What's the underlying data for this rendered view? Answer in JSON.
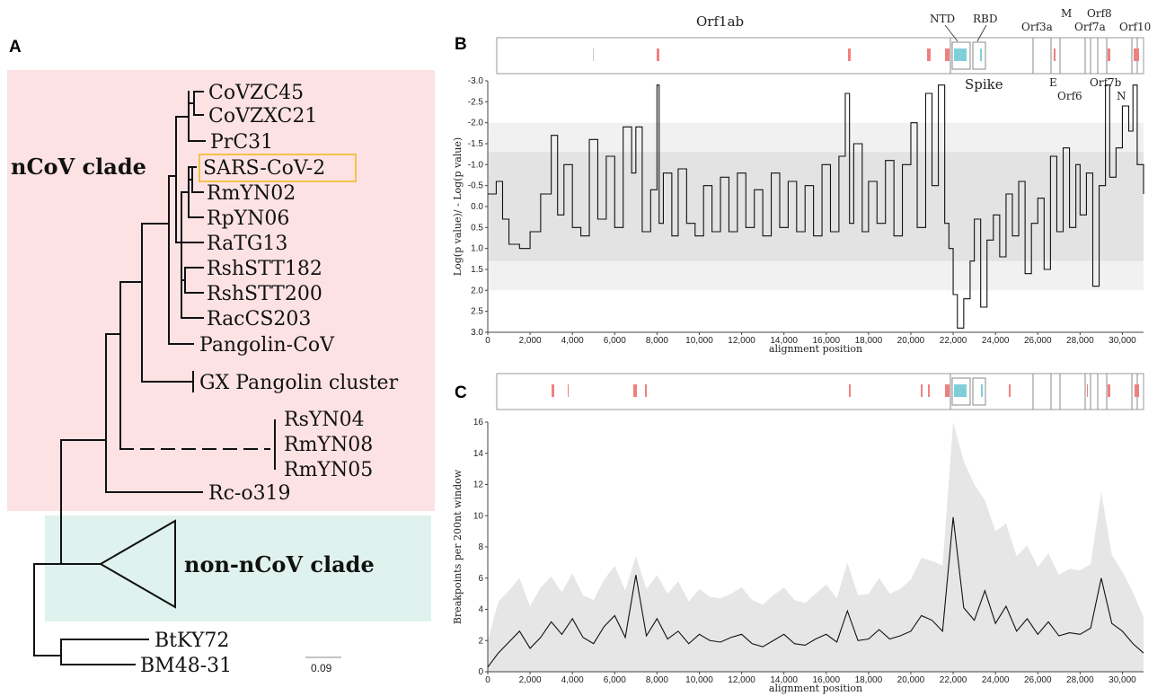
{
  "panels": {
    "a": "A",
    "b": "B",
    "c": "C"
  },
  "colors": {
    "ncov_bg": "#fde2e4",
    "nonncov_bg": "#dff2ee",
    "highlight_box": "#f4c24a",
    "recomb_red": "#f08080",
    "recomb_blue": "#7ecfd8",
    "band_dark": "#e3e3e3",
    "band_light": "#f1f1f1",
    "ci_fill": "#e6e6e6",
    "line": "#111111"
  },
  "tree": {
    "clade_ncov": "nCoV clade",
    "clade_non_ncov": "non-nCoV clade",
    "highlighted_leaf": "SARS-CoV-2",
    "leaves": [
      "CoVZC45",
      "CoVZXC21",
      "PrC31",
      "SARS-CoV-2",
      "RmYN02",
      "RpYN06",
      "RaTG13",
      "RshSTT182",
      "RshSTT200",
      "RacCS203",
      "Pangolin-CoV",
      "GX Pangolin cluster",
      "RsYN04",
      "RmYN08",
      "RmYN05",
      "Rc-o319",
      "BtKY72",
      "BM48-31"
    ],
    "scale_label": "0.09"
  },
  "genome_labels": {
    "orf1ab": "Orf1ab",
    "spike": "Spike",
    "ntd": "NTD",
    "rbd": "RBD",
    "orf3a": "Orf3a",
    "m": "M",
    "e": "E",
    "orf6": "Orf6",
    "orf7a": "Orf7a",
    "orf7b": "Orf7b",
    "orf8": "Orf8",
    "n": "N",
    "orf10": "Orf10"
  },
  "chart_data": [
    {
      "type": "line",
      "panel": "B",
      "xlabel": "alignment position",
      "ylabel": "Log(p value)/ - Log(p value)",
      "xlim": [
        0,
        31000
      ],
      "ylim": [
        -3.0,
        3.0
      ],
      "x_ticks": [
        "0",
        "2,000",
        "4,000",
        "6,000",
        "8,000",
        "10,000",
        "12,000",
        "14,000",
        "16,000",
        "18,000",
        "20,000",
        "22,000",
        "24,000",
        "26,000",
        "28,000",
        "30,000"
      ],
      "y_ticks": [
        "-3.0",
        "-2.5",
        "-2.0",
        "-1.5",
        "-1.0",
        "-0.5",
        "0.0",
        "0.5",
        "1.0",
        "1.5",
        "2.0",
        "2.5",
        "3.0"
      ],
      "bands": [
        {
          "from": -2.0,
          "to": 2.0,
          "shade": "light"
        },
        {
          "from": -1.3,
          "to": 1.3,
          "shade": "dark"
        }
      ],
      "x": [
        0,
        400,
        700,
        1000,
        1500,
        2000,
        2500,
        3000,
        3300,
        3600,
        4000,
        4400,
        4800,
        5200,
        5600,
        6000,
        6400,
        6800,
        7000,
        7300,
        7700,
        8000,
        8100,
        8300,
        8700,
        9000,
        9400,
        9800,
        10200,
        10600,
        11000,
        11400,
        11800,
        12200,
        12600,
        13000,
        13400,
        13800,
        14200,
        14600,
        15000,
        15400,
        15800,
        16200,
        16600,
        16900,
        17100,
        17300,
        17700,
        18000,
        18400,
        18800,
        19200,
        19600,
        20000,
        20300,
        20700,
        21000,
        21300,
        21600,
        21800,
        22000,
        22200,
        22500,
        22800,
        23000,
        23300,
        23600,
        23900,
        24200,
        24500,
        24800,
        25100,
        25400,
        25700,
        26000,
        26300,
        26600,
        26900,
        27200,
        27500,
        27800,
        28000,
        28300,
        28600,
        28900,
        29200,
        29400,
        29700,
        30000,
        30300,
        30500,
        30700,
        31000
      ],
      "y": [
        -0.3,
        -0.6,
        0.3,
        0.9,
        1.0,
        0.6,
        -0.3,
        -1.7,
        0.2,
        -1.0,
        0.5,
        0.7,
        -1.6,
        0.3,
        -1.2,
        0.5,
        -1.9,
        -0.8,
        -1.9,
        0.6,
        -0.4,
        -2.9,
        0.4,
        -0.8,
        0.7,
        -0.9,
        0.4,
        0.7,
        -0.5,
        0.6,
        -0.7,
        0.6,
        -0.8,
        0.5,
        -0.4,
        0.7,
        -0.8,
        0.5,
        -0.6,
        0.6,
        -0.5,
        0.7,
        -1.0,
        0.6,
        -1.2,
        -2.7,
        0.4,
        -1.5,
        0.6,
        -0.6,
        0.4,
        -1.1,
        0.7,
        -1.0,
        -2.0,
        0.5,
        -2.7,
        -0.5,
        -2.9,
        0.4,
        1.0,
        2.1,
        2.9,
        2.2,
        1.3,
        0.3,
        2.4,
        0.8,
        0.2,
        1.2,
        -0.3,
        0.7,
        -0.6,
        1.6,
        0.4,
        -0.2,
        1.5,
        -1.2,
        0.6,
        -1.4,
        0.5,
        -1.0,
        0.2,
        -0.8,
        1.9,
        -0.5,
        -2.9,
        -0.7,
        -1.4,
        -2.4,
        -1.8,
        -2.9,
        -1.0,
        -0.3
      ]
    },
    {
      "type": "area",
      "panel": "C",
      "xlabel": "alignment position",
      "ylabel": "Breakpoints per 200nt window",
      "xlim": [
        0,
        31000
      ],
      "ylim": [
        0,
        16
      ],
      "x_ticks": [
        "0",
        "2,000",
        "4,000",
        "6,000",
        "8,000",
        "10,000",
        "12,000",
        "14,000",
        "16,000",
        "18,000",
        "20,000",
        "22,000",
        "24,000",
        "26,000",
        "28,000",
        "30,000"
      ],
      "y_ticks": [
        "0",
        "2",
        "4",
        "6",
        "8",
        "10",
        "12",
        "14",
        "16"
      ],
      "x": [
        0,
        500,
        1000,
        1500,
        2000,
        2500,
        3000,
        3500,
        4000,
        4500,
        5000,
        5500,
        6000,
        6500,
        7000,
        7500,
        8000,
        8500,
        9000,
        9500,
        10000,
        10500,
        11000,
        11500,
        12000,
        12500,
        13000,
        13500,
        14000,
        14500,
        15000,
        15500,
        16000,
        16500,
        17000,
        17500,
        18000,
        18500,
        19000,
        19500,
        20000,
        20500,
        21000,
        21500,
        22000,
        22500,
        23000,
        23500,
        24000,
        24500,
        25000,
        25500,
        26000,
        26500,
        27000,
        27500,
        28000,
        28500,
        29000,
        29500,
        30000,
        30500,
        31000
      ],
      "series": [
        {
          "values": [
            0.3,
            1.2,
            1.9,
            2.6,
            1.5,
            2.2,
            3.2,
            2.4,
            3.4,
            2.2,
            1.8,
            2.9,
            3.6,
            2.2,
            6.2,
            2.3,
            3.4,
            2.1,
            2.6,
            1.8,
            2.4,
            2.0,
            1.9,
            2.2,
            2.4,
            1.8,
            1.6,
            2.0,
            2.4,
            1.8,
            1.7,
            2.1,
            2.4,
            1.9,
            3.9,
            2.0,
            2.1,
            2.7,
            2.1,
            2.3,
            2.6,
            3.6,
            3.3,
            2.6,
            9.9,
            4.1,
            3.3,
            5.2,
            3.1,
            4.2,
            2.6,
            3.4,
            2.4,
            3.2,
            2.3,
            2.5,
            2.4,
            2.8,
            6.0,
            3.1,
            2.6,
            1.8,
            1.2
          ]
        },
        {
          "values": [
            2.0,
            4.5,
            5.2,
            6.0,
            4.2,
            5.4,
            6.1,
            5.1,
            6.3,
            4.9,
            4.6,
            5.9,
            6.8,
            5.2,
            7.4,
            5.3,
            6.2,
            5.0,
            5.8,
            4.5,
            5.3,
            4.8,
            4.7,
            5.0,
            5.4,
            4.6,
            4.3,
            4.9,
            5.4,
            4.6,
            4.4,
            5.0,
            5.6,
            4.7,
            7.0,
            4.9,
            5.0,
            6.0,
            5.0,
            5.3,
            5.9,
            7.3,
            7.1,
            6.8,
            16.0,
            13.5,
            12.0,
            11.0,
            9.0,
            9.5,
            7.4,
            8.1,
            6.7,
            7.6,
            6.2,
            6.6,
            6.5,
            6.9,
            11.5,
            7.5,
            6.4,
            5.1,
            3.5
          ]
        }
      ]
    }
  ]
}
